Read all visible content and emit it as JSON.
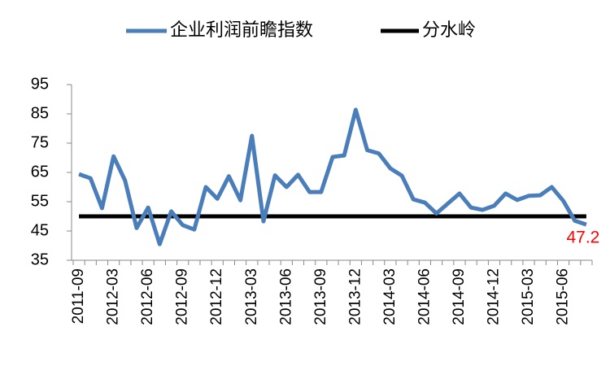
{
  "chart_data": {
    "type": "line",
    "categories": [
      "2011-09",
      null,
      null,
      "2012-03",
      null,
      null,
      "2012-06",
      null,
      null,
      "2012-09",
      null,
      null,
      "2012-12",
      null,
      null,
      "2013-03",
      null,
      null,
      "2013-06",
      null,
      null,
      "2013-09",
      null,
      null,
      "2013-12",
      null,
      null,
      "2014-03",
      null,
      null,
      "2014-06",
      null,
      null,
      "2014-09",
      null,
      null,
      "2014-12",
      null,
      null,
      "2015-03",
      null,
      null,
      "2015-06",
      null,
      null
    ],
    "series": [
      {
        "name": "企业利润前瞻指数",
        "color": "#4a7ebb",
        "values": [
          64.4,
          63,
          52.8,
          70.5,
          62.2,
          46,
          53,
          40.5,
          51.7,
          47,
          45.5,
          60,
          56,
          63.7,
          55.5,
          77.5,
          48.3,
          64,
          60,
          64.2,
          58.3,
          58.3,
          70.3,
          70.8,
          86.4,
          72.6,
          71.5,
          66.4,
          63.9,
          55.8,
          54.7,
          51,
          54.4,
          57.8,
          53,
          52.2,
          53.6,
          57.8,
          55.6,
          57,
          57.2,
          60,
          55.3,
          48.5,
          47.2
        ]
      }
    ],
    "threshold": {
      "name": "分水岭",
      "value": 50,
      "color": "#000000"
    },
    "last_label_color": "#ff0000",
    "ylim": [
      35,
      95
    ],
    "yticks": [
      35,
      45,
      55,
      65,
      75,
      85,
      95
    ]
  }
}
